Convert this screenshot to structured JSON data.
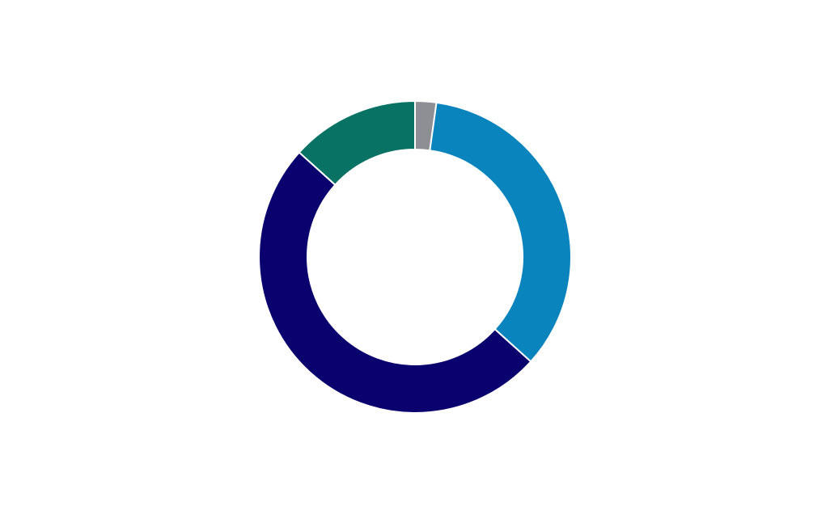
{
  "chart_data": {
    "type": "donut",
    "values": [
      2.2,
      34.5,
      50,
      13.3
    ],
    "colors": [
      "#8e8f94",
      "#0a84bc",
      "#0a006e",
      "#087264"
    ]
  }
}
